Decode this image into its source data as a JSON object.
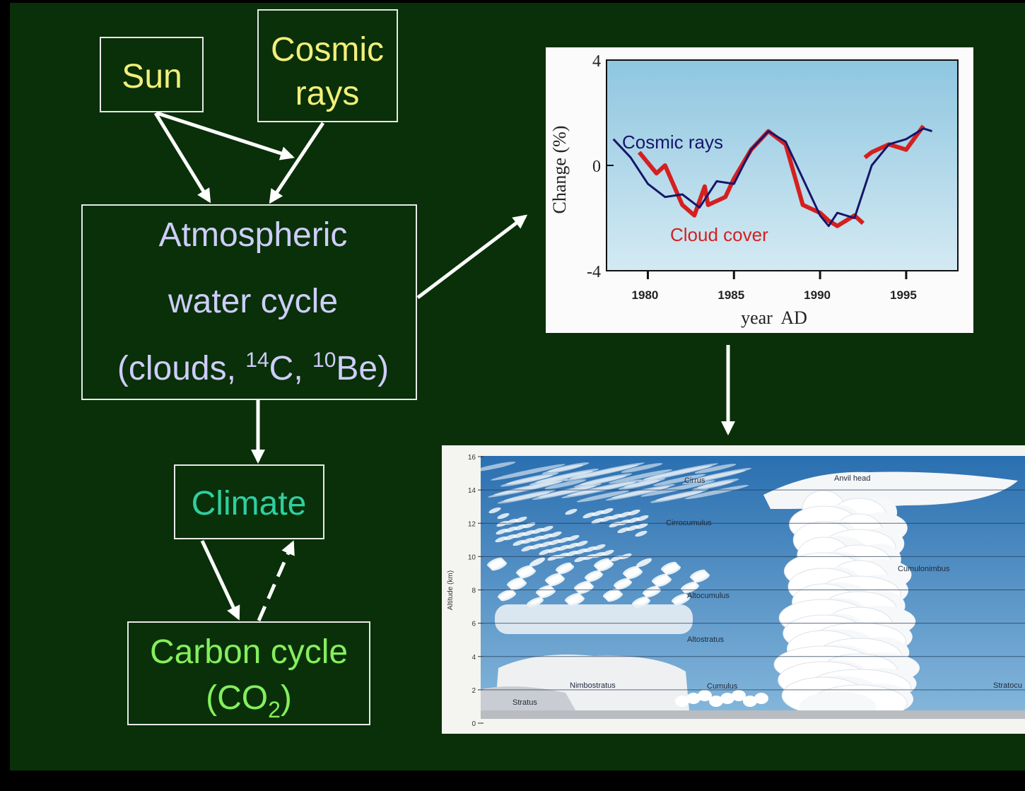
{
  "diagram": {
    "sun": "Sun",
    "cosmic_rays": [
      "Cosmic",
      "rays"
    ],
    "atmospheric": {
      "lines": [
        "Atmospheric",
        "water cycle"
      ],
      "detail": [
        "(clouds, ",
        "14",
        "C, ",
        "10",
        "Be)"
      ]
    },
    "climate": "Climate",
    "carbon": {
      "line": "Carbon cycle",
      "detail": [
        "(CO",
        "2",
        ")"
      ]
    }
  },
  "chart": {
    "type": "line",
    "ylabel": "Change (%)",
    "xlabel": "year  AD",
    "xlim": [
      1977.6,
      1998
    ],
    "ylim": [
      -4,
      4
    ],
    "yticks": [
      -4,
      0,
      4
    ],
    "xticks": [
      1980,
      1985,
      1990,
      1995
    ],
    "series": [
      {
        "name": "Cosmic rays",
        "color": "#16166a",
        "x": [
          1978,
          1979,
          1980,
          1981,
          1982,
          1983,
          1984,
          1985,
          1986,
          1987,
          1988,
          1989,
          1990,
          1990.5,
          1991,
          1992,
          1993,
          1994,
          1995,
          1996,
          1996.5
        ],
        "values": [
          1.0,
          0.3,
          -0.7,
          -1.2,
          -1.1,
          -1.6,
          -0.6,
          -0.7,
          0.6,
          1.3,
          0.9,
          -0.5,
          -1.9,
          -2.3,
          -1.8,
          -2.0,
          0.0,
          0.8,
          1.0,
          1.4,
          1.3
        ]
      },
      {
        "name": "Cloud cover",
        "color": "#d42020",
        "x": [
          1979.5,
          1980.5,
          1981,
          1982,
          1982.7,
          1983.3,
          1983.5,
          1984.5,
          1985,
          1986,
          1987,
          1988,
          1989,
          1990,
          1990.5,
          1991,
          1992,
          1992.5,
          1992.6,
          1992.6,
          1993,
          1994,
          1995,
          1996
        ],
        "values": [
          0.5,
          -0.3,
          0.0,
          -1.5,
          -1.9,
          -0.8,
          -1.5,
          -1.2,
          -0.5,
          0.6,
          1.3,
          0.8,
          -1.5,
          -1.8,
          -2.1,
          -2.3,
          -1.9,
          -2.2,
          null,
          0.3,
          0.5,
          0.8,
          0.6,
          1.5
        ]
      }
    ]
  },
  "illustration": {
    "ylabel": "Altitude (km)",
    "ylim": [
      0,
      16
    ],
    "yticks": [
      0,
      2,
      4,
      6,
      8,
      10,
      12,
      14,
      16
    ],
    "labels": [
      "Cirrus",
      "Cirrocumulus",
      "Altocumulus",
      "Altostratus",
      "Nimbostratus",
      "Cumulus",
      "Stratus",
      "Anvil head",
      "Cumulonimbus",
      "Stratocu"
    ]
  }
}
